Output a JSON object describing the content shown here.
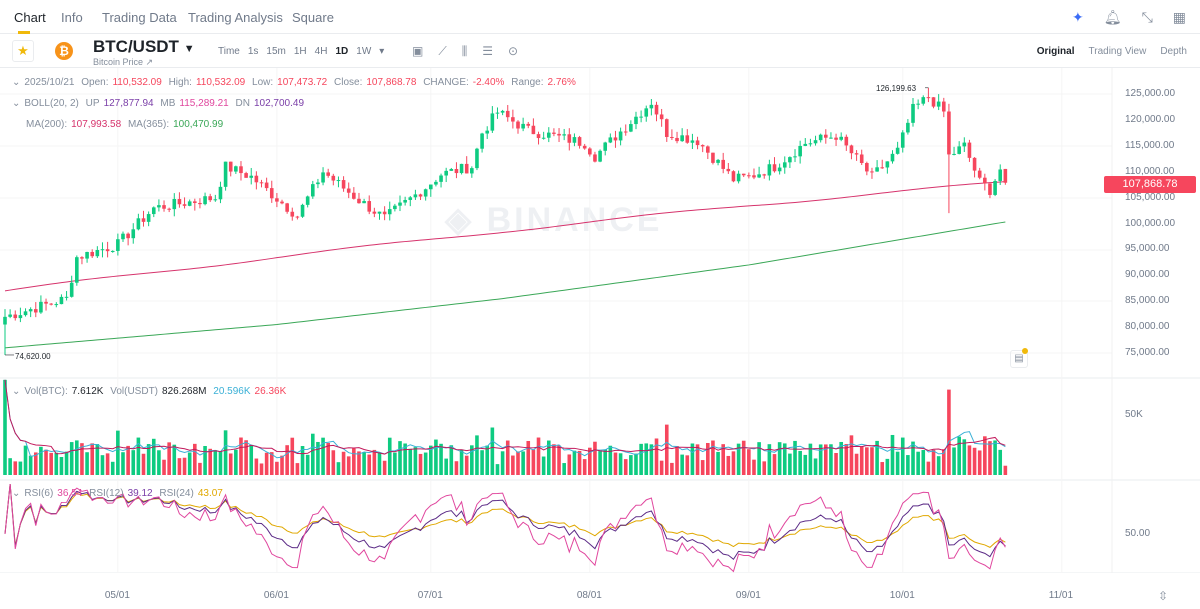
{
  "nav": {
    "tabs": [
      "Chart",
      "Info",
      "Trading Data",
      "Trading Analysis",
      "Square"
    ],
    "active": "Chart"
  },
  "header": {
    "pair": "BTC/USDT",
    "subtitle": "Bitcoin Price ↗",
    "intervals": [
      "Time",
      "1s",
      "15m",
      "1H",
      "4H",
      "1D",
      "1W",
      "▾"
    ],
    "active_interval": "1D",
    "views": [
      "Original",
      "Trading View",
      "Depth"
    ],
    "active_view": "Original"
  },
  "ohlc": {
    "date": "2025/10/21",
    "open_label": "Open:",
    "open": "110,532.09",
    "high_label": "High:",
    "high": "110,532.09",
    "low_label": "Low:",
    "low": "107,473.72",
    "close_label": "Close:",
    "close": "107,868.78",
    "change_label": "CHANGE:",
    "change": "-2.40%",
    "range_label": "Range:",
    "range": "2.76%"
  },
  "boll": {
    "label": "BOLL(20, 2)",
    "up_label": "UP",
    "up": "127,877.94",
    "mb_label": "MB",
    "mb": "115,289.21",
    "dn_label": "DN",
    "dn": "102,700.49"
  },
  "ma": {
    "ma200_label": "MA(200):",
    "ma200": "107,993.58",
    "ma365_label": "MA(365):",
    "ma365": "100,470.99"
  },
  "vol": {
    "btc_label": "Vol(BTC):",
    "btc": "7.612K",
    "usdt_label": "Vol(USDT)",
    "usdt": "826.268M",
    "ma1": "20.596K",
    "ma2": "26.36K",
    "axis": "50K"
  },
  "rsi": {
    "rsi6_label": "RSI(6)",
    "rsi6": "36.54",
    "rsi12_label": "RSI(12)",
    "rsi12": "39.12",
    "rsi24_label": "RSI(24)",
    "rsi24": "43.07",
    "axis": "50.00"
  },
  "price_axis": [
    "125,000.00",
    "120,000.00",
    "115,000.00",
    "110,000.00",
    "105,000.00",
    "100,000.00",
    "95,000.00",
    "90,000.00",
    "85,000.00",
    "80,000.00",
    "75,000.00"
  ],
  "current_price": "107,868.78",
  "high_marker": "126,199.63",
  "low_marker": "74,620.00",
  "watermark": "BINANCE",
  "x_axis": [
    "05/01",
    "06/01",
    "07/01",
    "08/01",
    "09/01",
    "10/01",
    "11/01"
  ],
  "colors": {
    "up": "#0ecb81",
    "down": "#f6465d",
    "ma200": "#d6336c",
    "ma365": "#3aa757",
    "accent": "#f0b90b"
  },
  "chart_data": {
    "type": "candlestick",
    "start_date": "2025-04-09",
    "end_date": "2025-10-21",
    "close_anchors": [
      [
        "2025-04-09",
        82000
      ],
      [
        "2025-04-21",
        85500
      ],
      [
        "2025-04-23",
        93500
      ],
      [
        "2025-05-01",
        96000
      ],
      [
        "2025-05-08",
        103000
      ],
      [
        "2025-05-20",
        105000
      ],
      [
        "2025-05-22",
        111000
      ],
      [
        "2025-05-27",
        109000
      ],
      [
        "2025-06-05",
        101500
      ],
      [
        "2025-06-10",
        110000
      ],
      [
        "2025-06-17",
        104500
      ],
      [
        "2025-06-22",
        101000
      ],
      [
        "2025-06-30",
        107000
      ],
      [
        "2025-07-03",
        109500
      ],
      [
        "2025-07-09",
        111000
      ],
      [
        "2025-07-11",
        117500
      ],
      [
        "2025-07-14",
        121500
      ],
      [
        "2025-07-20",
        118000
      ],
      [
        "2025-07-31",
        115500
      ],
      [
        "2025-08-02",
        113000
      ],
      [
        "2025-08-13",
        123500
      ],
      [
        "2025-08-16",
        117500
      ],
      [
        "2025-08-22",
        116000
      ],
      [
        "2025-08-29",
        108500
      ],
      [
        "2025-09-01",
        109000
      ],
      [
        "2025-09-06",
        111000
      ],
      [
        "2025-09-12",
        115500
      ],
      [
        "2025-09-18",
        117000
      ],
      [
        "2025-09-25",
        109000
      ],
      [
        "2025-09-30",
        114000
      ],
      [
        "2025-10-03",
        122000
      ],
      [
        "2025-10-06",
        124500
      ],
      [
        "2025-10-09",
        121500
      ],
      [
        "2025-10-10",
        113000
      ],
      [
        "2025-10-13",
        115000
      ],
      [
        "2025-10-16",
        108000
      ],
      [
        "2025-10-18",
        106500
      ],
      [
        "2025-10-20",
        110500
      ],
      [
        "2025-10-21",
        107868.78
      ]
    ],
    "ma200_anchors": [
      [
        "2025-04-09",
        87000
      ],
      [
        "2025-06-01",
        93500
      ],
      [
        "2025-07-15",
        98500
      ],
      [
        "2025-09-01",
        103500
      ],
      [
        "2025-10-21",
        108000
      ]
    ],
    "ma365_anchors": [
      [
        "2025-04-09",
        76000
      ],
      [
        "2025-06-01",
        80500
      ],
      [
        "2025-07-15",
        85500
      ],
      [
        "2025-09-01",
        92000
      ],
      [
        "2025-10-21",
        100300
      ]
    ],
    "ylim": [
      72000,
      128000
    ]
  }
}
